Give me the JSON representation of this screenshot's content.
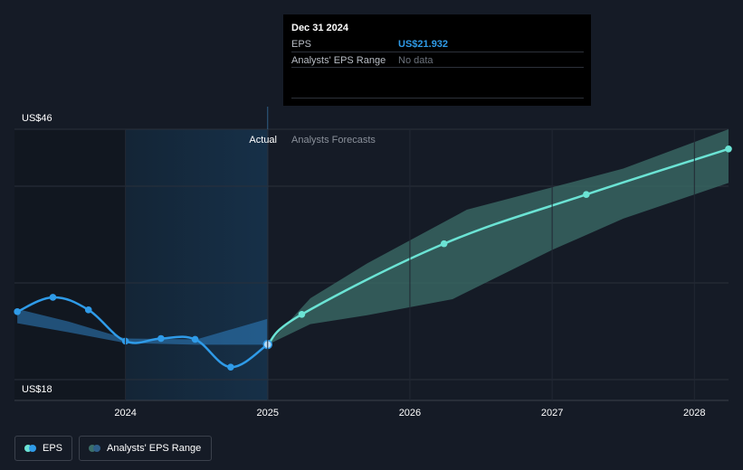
{
  "colors": {
    "background": "#151b26",
    "eps_actual": "#2f9be8",
    "eps_forecast": "#6be3d4",
    "range_actual": "#2f7fc1",
    "range_forecast": "#3c6f6a",
    "highlight": "#163048",
    "tooltip_eps": "#2f9be8"
  },
  "tooltip": {
    "date": "Dec 31 2024",
    "eps_label": "EPS",
    "eps_value": "US$21.932",
    "range_label": "Analysts' EPS Range",
    "range_value": "No data"
  },
  "legend": {
    "eps_label": "EPS",
    "range_label": "Analysts' EPS Range"
  },
  "chart_data": {
    "type": "line",
    "y_top_label": "US$46",
    "y_bottom_label": "US$18",
    "ylim": [
      18,
      46
    ],
    "xlim": [
      2023.22,
      2028.24
    ],
    "x_tick_labels": [
      "2024",
      "2025",
      "2026",
      "2027",
      "2028"
    ],
    "x_ticks": [
      2024,
      2025,
      2026,
      2027,
      2028
    ],
    "divider_x": 2025.0,
    "highlight_start": 2024.0,
    "actual_label": "Actual",
    "forecast_label": "Analysts Forecasts",
    "grid": true,
    "series": [
      {
        "name": "EPS",
        "segment": "actual",
        "points": [
          [
            2023.24,
            25.6
          ],
          [
            2023.49,
            27.2
          ],
          [
            2023.74,
            25.8
          ],
          [
            2024.0,
            22.3
          ],
          [
            2024.25,
            22.6
          ],
          [
            2024.49,
            22.5
          ],
          [
            2024.74,
            19.4
          ],
          [
            2025.0,
            21.932
          ]
        ]
      },
      {
        "name": "EPS",
        "segment": "forecast",
        "points": [
          [
            2025.0,
            21.932
          ],
          [
            2025.24,
            25.3
          ],
          [
            2026.24,
            33.2
          ],
          [
            2027.24,
            38.7
          ],
          [
            2028.24,
            43.8
          ]
        ]
      }
    ],
    "range_actual": {
      "upper": [
        [
          2023.24,
          25.9
        ],
        [
          2023.6,
          24.5
        ],
        [
          2024.0,
          22.6
        ],
        [
          2024.5,
          22.5
        ],
        [
          2025.0,
          24.8
        ]
      ],
      "lower": [
        [
          2023.24,
          24.3
        ],
        [
          2023.6,
          23.3
        ],
        [
          2024.0,
          22.1
        ],
        [
          2024.5,
          21.9
        ],
        [
          2025.0,
          21.9
        ]
      ]
    },
    "range_forecast": {
      "upper": [
        [
          2025.0,
          21.9
        ],
        [
          2025.3,
          27.1
        ],
        [
          2025.7,
          31.0
        ],
        [
          2026.4,
          37.0
        ],
        [
          2027.0,
          39.5
        ],
        [
          2027.5,
          41.6
        ],
        [
          2028.24,
          46.0
        ]
      ],
      "lower": [
        [
          2025.0,
          21.9
        ],
        [
          2025.3,
          24.2
        ],
        [
          2025.7,
          25.2
        ],
        [
          2026.3,
          27.0
        ],
        [
          2027.0,
          32.5
        ],
        [
          2027.5,
          36.0
        ],
        [
          2028.24,
          40.0
        ]
      ]
    }
  }
}
